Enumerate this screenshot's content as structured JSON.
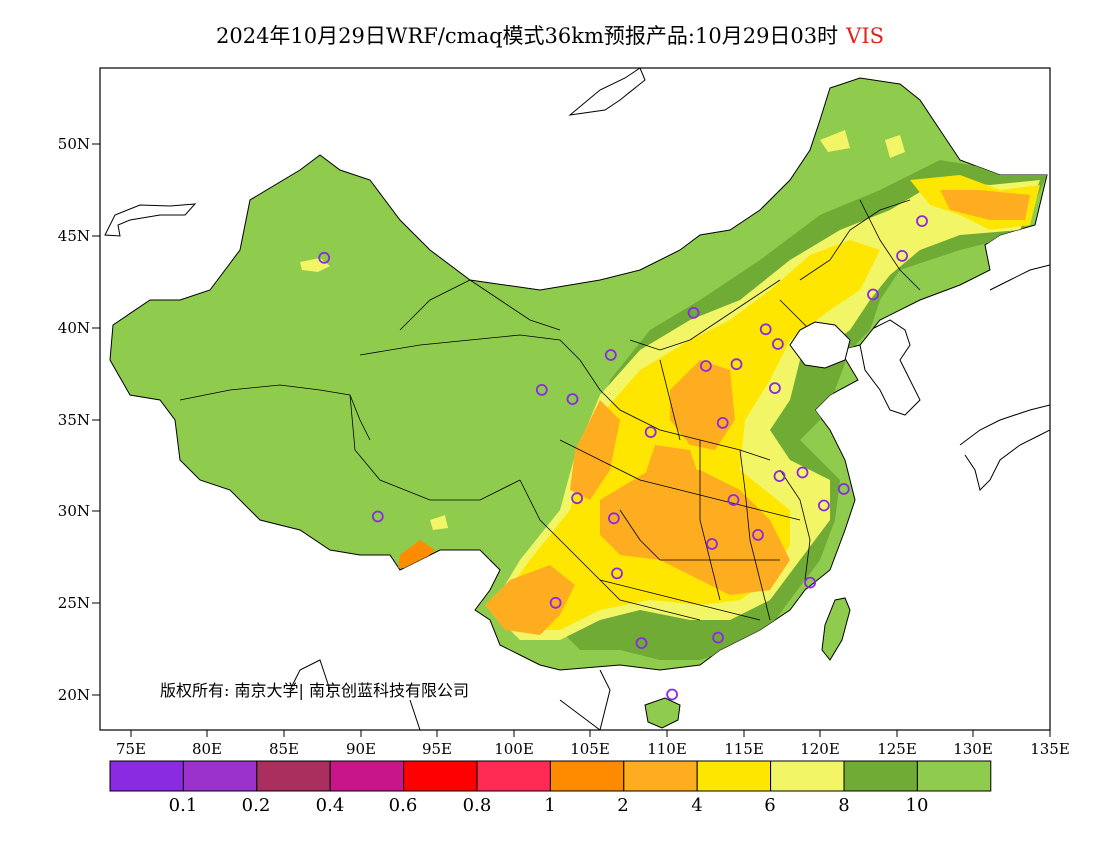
{
  "title": {
    "text": "2024年10月29日WRF/cmaq模式36km预报产品:10月29日03时",
    "variable": "VIS"
  },
  "axes": {
    "lat_ticks": [
      "50N",
      "45N",
      "40N",
      "35N",
      "30N",
      "25N",
      "20N"
    ],
    "lon_ticks": [
      "75E",
      "80E",
      "85E",
      "90E",
      "95E",
      "100E",
      "105E",
      "110E",
      "115E",
      "120E",
      "125E",
      "130E",
      "135E"
    ],
    "lon_range": [
      73,
      135
    ],
    "lat_range": [
      18,
      54
    ]
  },
  "copyright": "版权所有: 南京大学| 南京创蓝科技有限公司",
  "colorbar": {
    "colors": [
      "#8a2be2",
      "#9b32cc",
      "#aa2e5e",
      "#c8168a",
      "#ff0000",
      "#ff2b55",
      "#ff8c00",
      "#ffad20",
      "#ffe600",
      "#f2f566",
      "#6fab35",
      "#8fcc4d"
    ],
    "labels": [
      "0.1",
      "0.2",
      "0.4",
      "0.6",
      "0.8",
      "1",
      "2",
      "4",
      "6",
      "8",
      "10"
    ]
  },
  "colors": {
    "base_land": "#8fcc4d",
    "dark_green": "#6fab35",
    "light_yellow": "#f2f566",
    "yellow": "#ffe600",
    "orange_light": "#ffad20",
    "orange": "#ff8c00",
    "station": "#8a2be2"
  },
  "station_points": [
    [
      87.6,
      43.8
    ],
    [
      91.1,
      29.7
    ],
    [
      101.8,
      36.6
    ],
    [
      103.8,
      36.1
    ],
    [
      106.3,
      38.5
    ],
    [
      111.7,
      40.8
    ],
    [
      116.4,
      39.9
    ],
    [
      117.2,
      39.1
    ],
    [
      114.5,
      38.0
    ],
    [
      112.5,
      37.9
    ],
    [
      117.0,
      36.7
    ],
    [
      113.6,
      34.8
    ],
    [
      108.9,
      34.3
    ],
    [
      104.1,
      30.7
    ],
    [
      106.5,
      29.6
    ],
    [
      106.7,
      26.6
    ],
    [
      102.7,
      25.0
    ],
    [
      108.3,
      22.8
    ],
    [
      113.3,
      23.1
    ],
    [
      110.3,
      20.0
    ],
    [
      119.3,
      26.1
    ],
    [
      115.9,
      28.7
    ],
    [
      112.9,
      28.2
    ],
    [
      114.3,
      30.6
    ],
    [
      117.3,
      31.9
    ],
    [
      118.8,
      32.1
    ],
    [
      120.2,
      30.3
    ],
    [
      121.5,
      31.2
    ],
    [
      123.4,
      41.8
    ],
    [
      125.3,
      43.9
    ],
    [
      126.6,
      45.8
    ]
  ]
}
